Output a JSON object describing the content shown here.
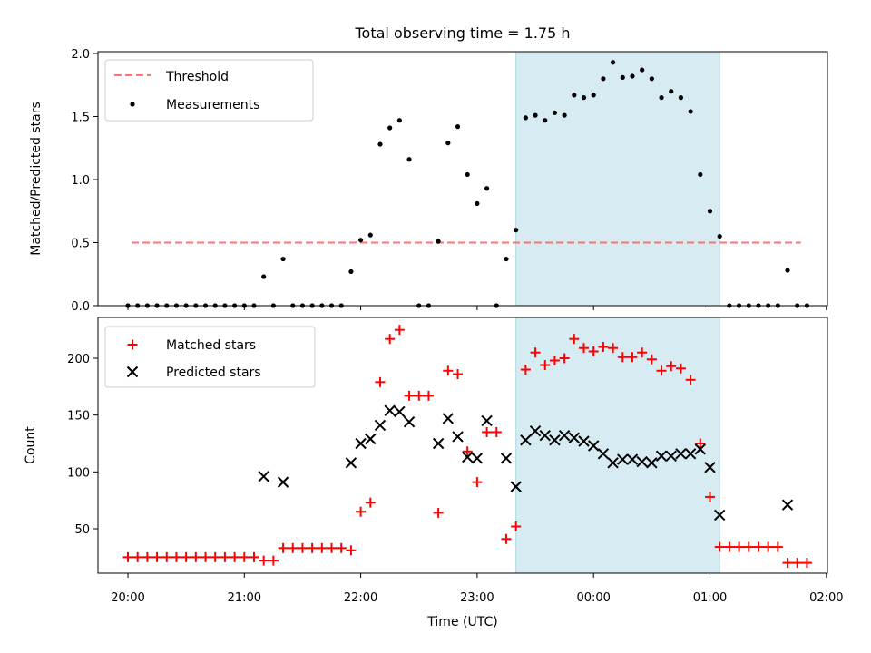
{
  "chart_data": {
    "title": "Total observing time = 1.75 h",
    "xlabel": "Time (UTC)",
    "x_ticks": [
      "20:00",
      "21:00",
      "22:00",
      "23:00",
      "00:00",
      "01:00",
      "02:00"
    ],
    "highlight_window": {
      "start": "23:20",
      "end": "01:05",
      "color": "#add8e6"
    },
    "panels": [
      {
        "type": "scatter",
        "ylabel": "Matched/Predicted stars",
        "ylim": [
          0,
          2.0
        ],
        "yticks": [
          "0.0",
          "0.5",
          "1.0",
          "1.5",
          "2.0"
        ],
        "legend_position": "upper-left",
        "threshold": {
          "name": "Threshold",
          "value": 0.5,
          "x_start": "20:00",
          "x_end": "01:45",
          "color": "#ff7373"
        },
        "measurements": {
          "name": "Measurements",
          "color": "#000000",
          "points": [
            [
              "20:00",
              0
            ],
            [
              "20:05",
              0
            ],
            [
              "20:10",
              0
            ],
            [
              "20:15",
              0
            ],
            [
              "20:20",
              0
            ],
            [
              "20:25",
              0
            ],
            [
              "20:30",
              0
            ],
            [
              "20:35",
              0
            ],
            [
              "20:40",
              0
            ],
            [
              "20:45",
              0
            ],
            [
              "20:50",
              0
            ],
            [
              "20:55",
              0
            ],
            [
              "21:00",
              0
            ],
            [
              "21:05",
              0
            ],
            [
              "21:10",
              0.23
            ],
            [
              "21:15",
              0
            ],
            [
              "21:20",
              0.37
            ],
            [
              "21:25",
              0
            ],
            [
              "21:30",
              0
            ],
            [
              "21:35",
              0
            ],
            [
              "21:40",
              0
            ],
            [
              "21:45",
              0
            ],
            [
              "21:50",
              0
            ],
            [
              "21:55",
              0.27
            ],
            [
              "22:00",
              0.52
            ],
            [
              "22:05",
              0.56
            ],
            [
              "22:10",
              1.28
            ],
            [
              "22:15",
              1.41
            ],
            [
              "22:20",
              1.47
            ],
            [
              "22:25",
              1.16
            ],
            [
              "22:30",
              0
            ],
            [
              "22:35",
              0
            ],
            [
              "22:40",
              0.51
            ],
            [
              "22:45",
              1.29
            ],
            [
              "22:50",
              1.42
            ],
            [
              "22:55",
              1.04
            ],
            [
              "23:00",
              0.81
            ],
            [
              "23:05",
              0.93
            ],
            [
              "23:10",
              0
            ],
            [
              "23:15",
              0.37
            ],
            [
              "23:20",
              0.6
            ],
            [
              "23:25",
              1.49
            ],
            [
              "23:30",
              1.51
            ],
            [
              "23:35",
              1.47
            ],
            [
              "23:40",
              1.53
            ],
            [
              "23:45",
              1.51
            ],
            [
              "23:50",
              1.67
            ],
            [
              "23:55",
              1.65
            ],
            [
              "00:00",
              1.67
            ],
            [
              "00:05",
              1.8
            ],
            [
              "00:10",
              1.93
            ],
            [
              "00:15",
              1.81
            ],
            [
              "00:20",
              1.82
            ],
            [
              "00:25",
              1.87
            ],
            [
              "00:30",
              1.8
            ],
            [
              "00:35",
              1.65
            ],
            [
              "00:40",
              1.7
            ],
            [
              "00:45",
              1.65
            ],
            [
              "00:50",
              1.54
            ],
            [
              "00:55",
              1.04
            ],
            [
              "01:00",
              0.75
            ],
            [
              "01:05",
              0.55
            ],
            [
              "01:10",
              0
            ],
            [
              "01:15",
              0
            ],
            [
              "01:20",
              0
            ],
            [
              "01:25",
              0
            ],
            [
              "01:30",
              0
            ],
            [
              "01:35",
              0
            ],
            [
              "01:40",
              0.28
            ],
            [
              "01:45",
              0
            ],
            [
              "01:50",
              0
            ]
          ]
        }
      },
      {
        "type": "scatter",
        "ylabel": "Count",
        "ylim": [
          8,
          233
        ],
        "yticks": [
          "50",
          "100",
          "150",
          "200"
        ],
        "legend_position": "upper-left",
        "series": [
          {
            "name": "Matched stars",
            "marker": "+",
            "color": "#ff0000",
            "points": [
              [
                "20:00",
                25
              ],
              [
                "20:05",
                25
              ],
              [
                "20:10",
                25
              ],
              [
                "20:15",
                25
              ],
              [
                "20:20",
                25
              ],
              [
                "20:25",
                25
              ],
              [
                "20:30",
                25
              ],
              [
                "20:35",
                25
              ],
              [
                "20:40",
                25
              ],
              [
                "20:45",
                25
              ],
              [
                "20:50",
                25
              ],
              [
                "20:55",
                25
              ],
              [
                "21:00",
                25
              ],
              [
                "21:05",
                25
              ],
              [
                "21:10",
                22
              ],
              [
                "21:15",
                22
              ],
              [
                "21:20",
                33
              ],
              [
                "21:25",
                33
              ],
              [
                "21:30",
                33
              ],
              [
                "21:35",
                33
              ],
              [
                "21:40",
                33
              ],
              [
                "21:45",
                33
              ],
              [
                "21:50",
                33
              ],
              [
                "21:55",
                31
              ],
              [
                "22:00",
                65
              ],
              [
                "22:05",
                73
              ],
              [
                "22:10",
                179
              ],
              [
                "22:15",
                217
              ],
              [
                "22:20",
                225
              ],
              [
                "22:25",
                167
              ],
              [
                "22:30",
                167
              ],
              [
                "22:35",
                167
              ],
              [
                "22:40",
                64
              ],
              [
                "22:45",
                189
              ],
              [
                "22:50",
                186
              ],
              [
                "22:55",
                118
              ],
              [
                "23:00",
                91
              ],
              [
                "23:05",
                135
              ],
              [
                "23:10",
                135
              ],
              [
                "23:15",
                41
              ],
              [
                "23:20",
                52
              ],
              [
                "23:25",
                190
              ],
              [
                "23:30",
                205
              ],
              [
                "23:35",
                194
              ],
              [
                "23:40",
                198
              ],
              [
                "23:45",
                200
              ],
              [
                "23:50",
                217
              ],
              [
                "23:55",
                209
              ],
              [
                "00:00",
                206
              ],
              [
                "00:05",
                210
              ],
              [
                "00:10",
                209
              ],
              [
                "00:15",
                201
              ],
              [
                "00:20",
                201
              ],
              [
                "00:25",
                205
              ],
              [
                "00:30",
                199
              ],
              [
                "00:35",
                189
              ],
              [
                "00:40",
                193
              ],
              [
                "00:45",
                191
              ],
              [
                "00:50",
                181
              ],
              [
                "00:55",
                125
              ],
              [
                "01:00",
                78
              ],
              [
                "01:05",
                34
              ],
              [
                "01:10",
                34
              ],
              [
                "01:15",
                34
              ],
              [
                "01:20",
                34
              ],
              [
                "01:25",
                34
              ],
              [
                "01:30",
                34
              ],
              [
                "01:35",
                34
              ],
              [
                "01:40",
                20
              ],
              [
                "01:45",
                20
              ],
              [
                "01:50",
                20
              ]
            ]
          },
          {
            "name": "Predicted stars",
            "marker": "x",
            "color": "#000000",
            "points": [
              [
                "21:10",
                96
              ],
              [
                "21:20",
                91
              ],
              [
                "21:55",
                108
              ],
              [
                "22:00",
                125
              ],
              [
                "22:05",
                129
              ],
              [
                "22:10",
                141
              ],
              [
                "22:15",
                154
              ],
              [
                "22:20",
                153
              ],
              [
                "22:25",
                144
              ],
              [
                "22:40",
                125
              ],
              [
                "22:45",
                147
              ],
              [
                "22:50",
                131
              ],
              [
                "22:55",
                113
              ],
              [
                "23:00",
                112
              ],
              [
                "23:05",
                145
              ],
              [
                "23:15",
                112
              ],
              [
                "23:20",
                87
              ],
              [
                "23:25",
                128
              ],
              [
                "23:30",
                136
              ],
              [
                "23:35",
                132
              ],
              [
                "23:40",
                128
              ],
              [
                "23:45",
                132
              ],
              [
                "23:50",
                130
              ],
              [
                "23:55",
                127
              ],
              [
                "00:00",
                123
              ],
              [
                "00:05",
                116
              ],
              [
                "00:10",
                108
              ],
              [
                "00:15",
                111
              ],
              [
                "00:20",
                111
              ],
              [
                "00:25",
                109
              ],
              [
                "00:30",
                108
              ],
              [
                "00:35",
                114
              ],
              [
                "00:40",
                114
              ],
              [
                "00:45",
                116
              ],
              [
                "00:50",
                116
              ],
              [
                "00:55",
                120
              ],
              [
                "01:00",
                104
              ],
              [
                "01:05",
                62
              ],
              [
                "01:40",
                71
              ]
            ]
          }
        ]
      }
    ]
  }
}
